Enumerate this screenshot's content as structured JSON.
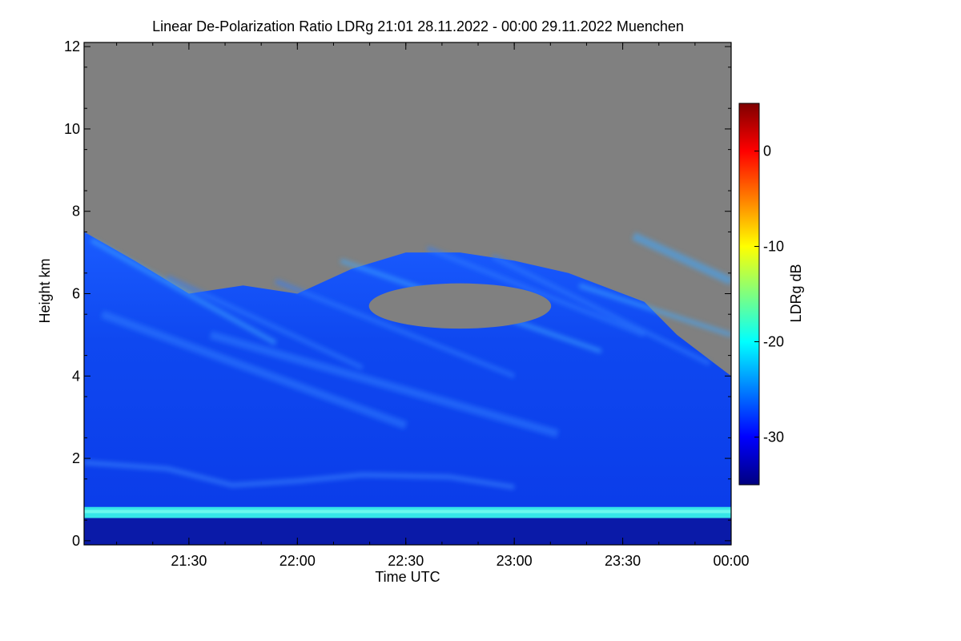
{
  "chart_data": {
    "type": "heatmap",
    "title": "Linear De-Polarization Ratio LDRg   21:01 28.11.2022 - 00:00 29.11.2022 Muenchen",
    "xlabel": "Time UTC",
    "ylabel": "Height km",
    "x_range": [
      21.0167,
      24.0
    ],
    "x_ticks": [
      {
        "value": 21.5,
        "label": "21:30"
      },
      {
        "value": 22.0,
        "label": "22:00"
      },
      {
        "value": 22.5,
        "label": "22:30"
      },
      {
        "value": 23.0,
        "label": "23:00"
      },
      {
        "value": 23.5,
        "label": "23:30"
      },
      {
        "value": 24.0,
        "label": "00:00"
      }
    ],
    "ylim": [
      -0.1,
      12.1
    ],
    "y_ticks": [
      0,
      2,
      4,
      6,
      8,
      10,
      12
    ],
    "no_signal_color": "#808080",
    "colorbar": {
      "label": "LDRg dB",
      "range": [
        -35,
        5
      ],
      "ticks": [
        0,
        -10,
        -20,
        -30
      ],
      "colormap": [
        "#00007f",
        "#0000ff",
        "#007fff",
        "#00ffff",
        "#7fff7f",
        "#ffff00",
        "#ff7f00",
        "#ff0000",
        "#7f0000"
      ]
    },
    "features": {
      "near_surface_band_km": [
        0.0,
        0.55
      ],
      "near_surface_ldr_db": -33,
      "boundary_layer_top_km": 0.7,
      "boundary_layer_top_ldr_db": -20,
      "cloud_ldr_db": -28,
      "fall_streak_ldr_db": -24,
      "cloud_top_profile": [
        {
          "time": 21.0167,
          "km": 7.5
        },
        {
          "time": 21.25,
          "km": 6.8
        },
        {
          "time": 21.5,
          "km": 6.0
        },
        {
          "time": 21.75,
          "km": 6.2
        },
        {
          "time": 22.0,
          "km": 6.0
        },
        {
          "time": 22.25,
          "km": 6.6
        },
        {
          "time": 22.5,
          "km": 7.0
        },
        {
          "time": 22.75,
          "km": 7.0
        },
        {
          "time": 23.0,
          "km": 6.8
        },
        {
          "time": 23.25,
          "km": 6.5
        },
        {
          "time": 23.5,
          "km": 6.0
        },
        {
          "time": 23.6,
          "km": 5.8
        },
        {
          "time": 23.75,
          "km": 5.0
        },
        {
          "time": 24.0,
          "km": 4.0
        }
      ],
      "clear_pocket": {
        "time_center": 22.75,
        "km_center": 5.7,
        "time_halfwidth": 0.42,
        "km_halfwidth": 0.55
      }
    }
  }
}
